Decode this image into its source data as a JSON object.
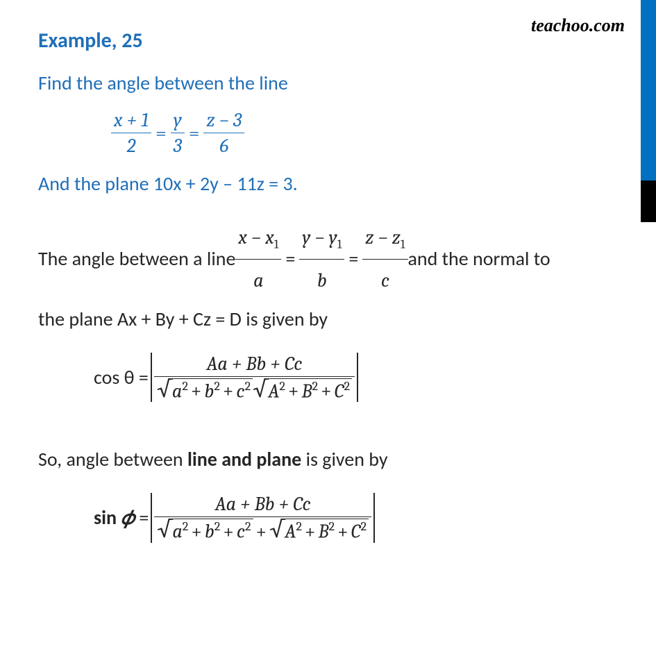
{
  "watermark": "teachoo.com",
  "title": "Example, 25",
  "problem": {
    "line1": "Find the angle between the line",
    "eq": {
      "f1_num": "x + 1",
      "f1_den": "2",
      "f2_num": "y",
      "f2_den": "3",
      "f3_num": "z − 3",
      "f3_den": "6"
    },
    "line2": "And the plane 10x  +  2y – 11z = 3."
  },
  "explain": {
    "p1a": "The angle between a line ",
    "gen": {
      "f1_num_a": "x − x",
      "f1_num_sub": "1",
      "f1_den": "a",
      "f2_num_a": "y − y",
      "f2_num_sub": "1",
      "f2_den": "b",
      "f3_num_a": "z − z",
      "f3_num_sub": "1",
      "f3_den": "c"
    },
    "p1b": " and the normal to",
    "p2": "the plane Ax + By + Cz = D is given by",
    "cos_lhs": "cos θ  = ",
    "formula": {
      "num": "Aa + Bb + Cc",
      "d1_inner": "a",
      "d2_inner": "b",
      "d3_inner": "c",
      "D1_inner": "A",
      "D2_inner": "B",
      "D3_inner": "C"
    },
    "conc_a": "So, angle between ",
    "conc_b": "line and plane",
    "conc_c": " is given by",
    "sin_lhs_a": "sin ",
    "sin_lhs_b": "𝜙",
    "sin_lhs_c": " = "
  },
  "style": {
    "accent": "#1f6fb8",
    "text": "#262626",
    "bg": "#ffffff",
    "strip": "#0070c0",
    "title_fs": 30,
    "body_fs": 28
  }
}
